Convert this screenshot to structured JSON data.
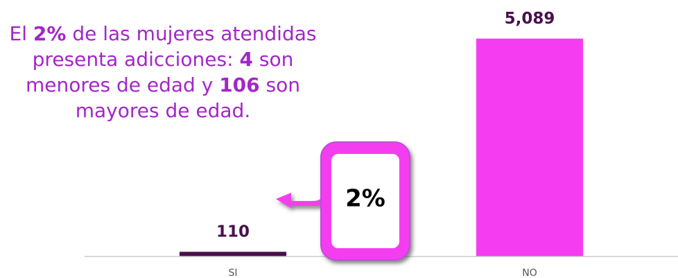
{
  "chart_data": {
    "type": "bar",
    "categories": [
      "SI",
      "NO"
    ],
    "values": [
      110,
      5089
    ],
    "value_labels": [
      "110",
      "5,089"
    ],
    "colors": [
      "#4a0f4d",
      "#f53cf0"
    ],
    "ylim": [
      0,
      5100
    ],
    "annotation": [
      {
        "text": "El ",
        "bold": false
      },
      {
        "text": "2%",
        "bold": true
      },
      {
        "text": " de las mujeres atendidas presenta adicciones: ",
        "bold": false
      },
      {
        "text": "4",
        "bold": true
      },
      {
        "text": " son menores de edad y ",
        "bold": false
      },
      {
        "text": "106",
        "bold": true
      },
      {
        "text": " son mayores de edad.",
        "bold": false
      }
    ],
    "callout": "2%"
  }
}
